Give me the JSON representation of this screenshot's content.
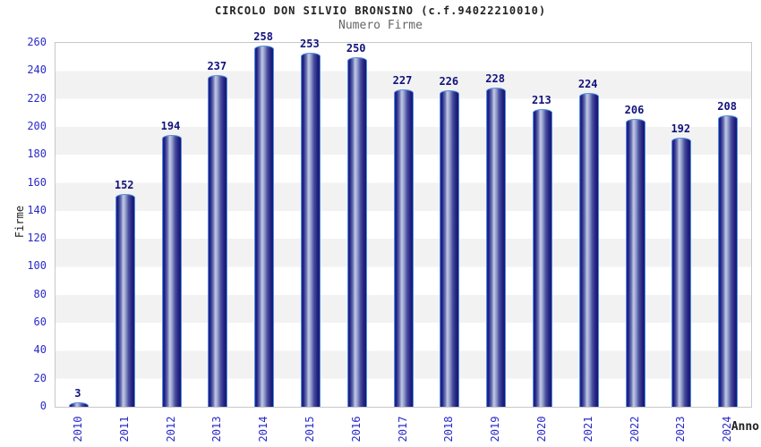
{
  "title": "CIRCOLO DON SILVIO BRONSINO (c.f.94022210010)",
  "subtitle": "Numero Firme",
  "colors": {
    "axis_text_blue": "#2a2ac8",
    "value_label_navy": "#12127c",
    "bar_dark_navy": "#191970",
    "bar_highlight": "#c3c9e4",
    "bar_border_blue": "#4e8fe0",
    "band_gray": "#f2f2f2",
    "plot_border_gray": "#c8c8c8",
    "subtitle_gray": "#666666",
    "title_black": "#222222"
  },
  "chart_data": {
    "type": "bar",
    "title": "CIRCOLO DON SILVIO BRONSINO (c.f.94022210010)",
    "subtitle": "Numero Firme",
    "xlabel": "Anno",
    "ylabel": "Firme",
    "categories": [
      "2010",
      "2011",
      "2012",
      "2013",
      "2014",
      "2015",
      "2016",
      "2017",
      "2018",
      "2019",
      "2020",
      "2021",
      "2022",
      "2023",
      "2024"
    ],
    "values": [
      3,
      152,
      194,
      237,
      258,
      253,
      250,
      227,
      226,
      228,
      213,
      224,
      206,
      192,
      208
    ],
    "ylim": [
      0,
      260
    ],
    "ytick_step": 20,
    "yticks": [
      0,
      20,
      40,
      60,
      80,
      100,
      120,
      140,
      160,
      180,
      200,
      220,
      240,
      260
    ],
    "legend": "none",
    "grid": "alternating-horizontal-bands",
    "bar_labels_shown": true
  }
}
